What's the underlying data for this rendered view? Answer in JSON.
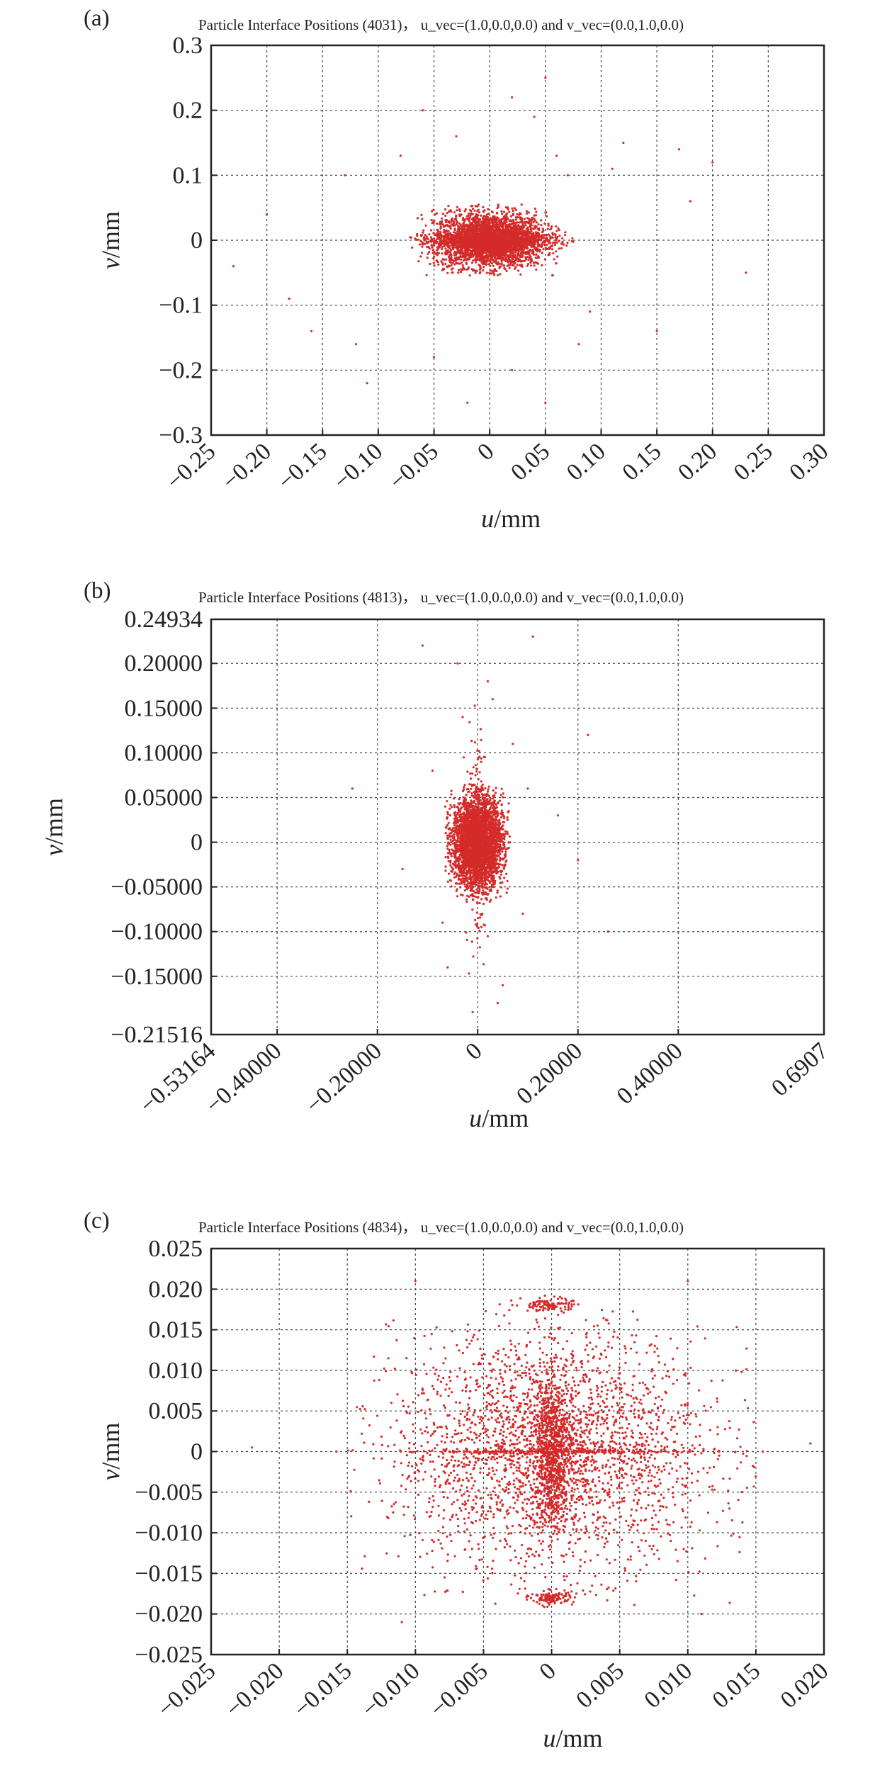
{
  "colors": {
    "points": "#d42a2a",
    "axis": "#222222",
    "grid": "#444444"
  },
  "chart_data": [
    {
      "type": "scatter",
      "panel_label": "(a)",
      "title": "Particle Interface Positions (4031)，  u_vec=(1.0,0.0,0.0) and v_vec=(0.0,1.0,0.0)",
      "xlabel": {
        "var": "u",
        "unit": "/mm"
      },
      "ylabel": {
        "var": "v",
        "unit": "/mm"
      },
      "xlim": [
        -0.25,
        0.3
      ],
      "ylim": [
        -0.3,
        0.3
      ],
      "xticks": [
        -0.25,
        -0.2,
        -0.15,
        -0.1,
        -0.05,
        0,
        0.05,
        0.1,
        0.15,
        0.2,
        0.25,
        0.3
      ],
      "xtick_labels": [
        "−0.25",
        "−0.20",
        "−0.15",
        "−0.10",
        "−0.05",
        "0",
        "0.05",
        "0.10",
        "0.15",
        "0.20",
        "0.25",
        "0.30"
      ],
      "yticks": [
        0.3,
        0.2,
        0.1,
        0,
        -0.1,
        -0.2,
        -0.3
      ],
      "ytick_labels": [
        "0.3",
        "0.2",
        "0.1",
        "0",
        "−0.1",
        "−0.2",
        "−0.3"
      ],
      "grid": true,
      "series": [
        {
          "points": [
            [
              0.02,
              0.22
            ],
            [
              0.05,
              0.25
            ],
            [
              -0.06,
              0.2
            ],
            [
              0.12,
              0.15
            ],
            [
              -0.13,
              0.1
            ],
            [
              -0.2,
              0.04
            ],
            [
              0.18,
              0.06
            ],
            [
              -0.23,
              -0.04
            ],
            [
              0.23,
              -0.05
            ],
            [
              0.08,
              -0.16
            ],
            [
              -0.16,
              -0.14
            ],
            [
              0.15,
              -0.14
            ],
            [
              -0.11,
              -0.22
            ],
            [
              0.05,
              -0.25
            ],
            [
              -0.02,
              -0.25
            ],
            [
              0.11,
              0.11
            ],
            [
              -0.08,
              0.13
            ],
            [
              0.09,
              -0.11
            ],
            [
              -0.18,
              -0.09
            ],
            [
              0.17,
              0.14
            ],
            [
              0.2,
              0.12
            ],
            [
              -0.03,
              0.16
            ],
            [
              0.04,
              0.19
            ],
            [
              -0.12,
              -0.16
            ],
            [
              0.02,
              -0.2
            ],
            [
              0.06,
              0.13
            ],
            [
              -0.05,
              -0.18
            ],
            [
              0.07,
              0.1
            ]
          ],
          "core": [
            {
              "cx": 0,
              "cy": 0,
              "rx": 0.065,
              "ry": 0.055,
              "n": 3000
            },
            {
              "cx": 0,
              "cy": 0,
              "rx": 0.075,
              "ry": 0.015,
              "n": 600
            }
          ]
        }
      ]
    },
    {
      "type": "scatter",
      "panel_label": "(b)",
      "title": "Particle Interface Positions (4813)，  u_vec=(1.0,0.0,0.0) and v_vec=(0.0,1.0,0.0)",
      "xlabel": {
        "var": "u",
        "unit": "/mm"
      },
      "ylabel": {
        "var": "v",
        "unit": "/mm"
      },
      "xlim": [
        -0.53164,
        0.6907
      ],
      "ylim": [
        -0.21516,
        0.24934
      ],
      "xticks": [
        -0.53164,
        -0.4,
        -0.2,
        0,
        0.2,
        0.4,
        0.6907
      ],
      "xtick_labels": [
        "−0.53164",
        "−0.40000",
        "−0.20000",
        "0",
        "0.20000",
        "0.40000",
        "0.6907"
      ],
      "yticks": [
        0.24934,
        0.2,
        0.15,
        0.1,
        0.05,
        0,
        -0.05,
        -0.1,
        -0.15,
        -0.21516
      ],
      "ytick_labels": [
        "0.24934",
        "0.20000",
        "0.15000",
        "0.10000",
        "0.05000",
        "0",
        "−0.05000",
        "−0.10000",
        "−0.15000",
        "−0.21516"
      ],
      "grid": true,
      "series": [
        {
          "points": [
            [
              -0.11,
              0.22
            ],
            [
              0.11,
              0.23
            ],
            [
              -0.04,
              0.2
            ],
            [
              0.03,
              0.16
            ],
            [
              0.22,
              0.12
            ],
            [
              0.26,
              -0.1
            ],
            [
              -0.25,
              0.06
            ],
            [
              0.07,
              0.11
            ],
            [
              -0.06,
              -0.14
            ],
            [
              0.04,
              -0.18
            ],
            [
              -0.01,
              -0.19
            ],
            [
              0.02,
              0.18
            ],
            [
              -0.09,
              0.08
            ],
            [
              0.1,
              0.06
            ],
            [
              -0.15,
              -0.03
            ],
            [
              0.16,
              0.03
            ],
            [
              0.2,
              -0.02
            ],
            [
              -0.03,
              0.14
            ],
            [
              0.05,
              -0.16
            ],
            [
              0.09,
              -0.08
            ],
            [
              -0.07,
              -0.09
            ]
          ],
          "core": [
            {
              "cx": 0,
              "cy": 0,
              "rx": 0.065,
              "ry": 0.065,
              "n": 3500
            },
            {
              "cx": 0,
              "cy": 0,
              "rx": 0.03,
              "ry": 0.16,
              "n": 200
            }
          ]
        }
      ]
    },
    {
      "type": "scatter",
      "panel_label": "(c)",
      "title": "Particle Interface Positions (4834)，  u_vec=(1.0,0.0,0.0) and v_vec=(0.0,1.0,0.0)",
      "xlabel": {
        "var": "u",
        "unit": "/mm"
      },
      "ylabel": {
        "var": "v",
        "unit": "/mm"
      },
      "xlim": [
        -0.025,
        0.02
      ],
      "ylim": [
        -0.025,
        0.025
      ],
      "xticks": [
        -0.025,
        -0.02,
        -0.015,
        -0.01,
        -0.005,
        0,
        0.005,
        0.01,
        0.015,
        0.02
      ],
      "xtick_labels": [
        "−0.025",
        "−0.020",
        "−0.015",
        "−0.010",
        "−0.005",
        "0",
        "0.005",
        "0.010",
        "0.015",
        "0.020"
      ],
      "yticks": [
        0.025,
        0.02,
        0.015,
        0.01,
        0.005,
        0,
        -0.005,
        -0.01,
        -0.015,
        -0.02,
        -0.025
      ],
      "ytick_labels": [
        "0.025",
        "0.020",
        "0.015",
        "0.010",
        "0.005",
        "0",
        "−0.005",
        "−0.010",
        "−0.015",
        "−0.020",
        "−0.025"
      ],
      "grid": true,
      "series": [
        {
          "points": [
            [
              -0.0158,
              0.0
            ],
            [
              0.0155,
              0.0
            ],
            [
              -0.022,
              0.0005
            ],
            [
              0.019,
              0.001
            ],
            [
              -0.01,
              0.021
            ],
            [
              0.01,
              0.021
            ],
            [
              -0.011,
              -0.021
            ],
            [
              0.011,
              -0.02
            ]
          ],
          "core": [
            {
              "cx": 0,
              "cy": 0,
              "rx": 0.015,
              "ry": 0.019,
              "n": 2600
            },
            {
              "cx": 0,
              "cy": 0,
              "rx": 0.002,
              "ry": 0.012,
              "n": 900
            },
            {
              "cx": 0,
              "cy": 0.018,
              "rx": 0.002,
              "ry": 0.0012,
              "n": 120
            },
            {
              "cx": 0,
              "cy": -0.018,
              "rx": 0.002,
              "ry": 0.0012,
              "n": 120
            },
            {
              "cx": 0,
              "cy": 0,
              "rx": 0.0158,
              "ry": 0.0003,
              "n": 250
            }
          ]
        }
      ]
    }
  ]
}
